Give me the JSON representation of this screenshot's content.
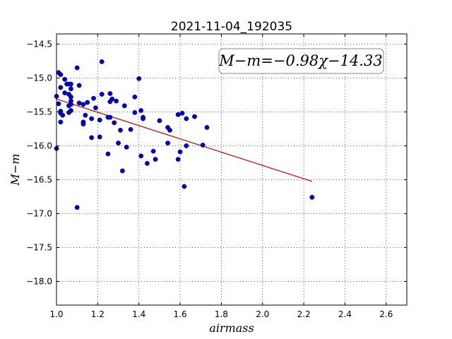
{
  "chart_data": {
    "type": "scatter",
    "title": "2021-11-04_192035",
    "xlabel": "airmass",
    "ylabel": "M−m",
    "xlim": [
      1.0,
      2.7
    ],
    "ylim": [
      -18.35,
      -14.35
    ],
    "y_inverted": true,
    "grid": true,
    "x_ticks": [
      1.0,
      1.2,
      1.4,
      1.6,
      1.8,
      2.0,
      2.2,
      2.4,
      2.6
    ],
    "x_tick_labels": [
      "1.0",
      "1.2",
      "1.4",
      "1.6",
      "1.8",
      "2.0",
      "2.2",
      "2.4",
      "2.6"
    ],
    "y_ticks": [
      -14.5,
      -15.0,
      -15.5,
      -16.0,
      -16.5,
      -17.0,
      -17.5,
      -18.0
    ],
    "y_tick_labels": [
      "−14.5",
      "−15.0",
      "−15.5",
      "−16.0",
      "−16.5",
      "−17.0",
      "−17.5",
      "−18.0"
    ],
    "annotation": "M−m=−0.98χ−14.33",
    "point_color": "#0000cc",
    "line_color": "#cc0000",
    "fit": {
      "slope": -0.98,
      "intercept": -14.33,
      "x_range": [
        1.0,
        2.24
      ]
    },
    "points": [
      {
        "x": 1.0,
        "y": -15.27
      },
      {
        "x": 1.0,
        "y": -16.04
      },
      {
        "x": 1.01,
        "y": -15.38
      },
      {
        "x": 1.01,
        "y": -14.92
      },
      {
        "x": 1.02,
        "y": -14.95
      },
      {
        "x": 1.02,
        "y": -15.14
      },
      {
        "x": 1.02,
        "y": -15.49
      },
      {
        "x": 1.02,
        "y": -15.52
      },
      {
        "x": 1.02,
        "y": -15.65
      },
      {
        "x": 1.03,
        "y": -15.55
      },
      {
        "x": 1.04,
        "y": -15.02
      },
      {
        "x": 1.04,
        "y": -15.22
      },
      {
        "x": 1.05,
        "y": -15.09
      },
      {
        "x": 1.06,
        "y": -15.09
      },
      {
        "x": 1.06,
        "y": -15.24
      },
      {
        "x": 1.06,
        "y": -15.41
      },
      {
        "x": 1.06,
        "y": -15.51
      },
      {
        "x": 1.07,
        "y": -15.09
      },
      {
        "x": 1.07,
        "y": -15.16
      },
      {
        "x": 1.07,
        "y": -15.28
      },
      {
        "x": 1.07,
        "y": -15.34
      },
      {
        "x": 1.07,
        "y": -15.39
      },
      {
        "x": 1.07,
        "y": -15.48
      },
      {
        "x": 1.1,
        "y": -14.85
      },
      {
        "x": 1.1,
        "y": -16.91
      },
      {
        "x": 1.11,
        "y": -15.11
      },
      {
        "x": 1.11,
        "y": -15.37
      },
      {
        "x": 1.13,
        "y": -15.39
      },
      {
        "x": 1.13,
        "y": -15.65
      },
      {
        "x": 1.13,
        "y": -15.68
      },
      {
        "x": 1.14,
        "y": -15.55
      },
      {
        "x": 1.15,
        "y": -15.36
      },
      {
        "x": 1.17,
        "y": -15.88
      },
      {
        "x": 1.17,
        "y": -15.6
      },
      {
        "x": 1.18,
        "y": -15.3
      },
      {
        "x": 1.19,
        "y": -15.44
      },
      {
        "x": 1.21,
        "y": -15.62
      },
      {
        "x": 1.21,
        "y": -15.87
      },
      {
        "x": 1.22,
        "y": -14.76
      },
      {
        "x": 1.22,
        "y": -15.24
      },
      {
        "x": 1.25,
        "y": -15.58
      },
      {
        "x": 1.25,
        "y": -16.12
      },
      {
        "x": 1.26,
        "y": -15.23
      },
      {
        "x": 1.26,
        "y": -15.35
      },
      {
        "x": 1.26,
        "y": -15.58
      },
      {
        "x": 1.27,
        "y": -15.31
      },
      {
        "x": 1.28,
        "y": -15.66
      },
      {
        "x": 1.29,
        "y": -15.34
      },
      {
        "x": 1.3,
        "y": -15.96
      },
      {
        "x": 1.31,
        "y": -15.77
      },
      {
        "x": 1.32,
        "y": -16.37
      },
      {
        "x": 1.33,
        "y": -15.41
      },
      {
        "x": 1.34,
        "y": -16.02
      },
      {
        "x": 1.36,
        "y": -15.76
      },
      {
        "x": 1.38,
        "y": -15.28
      },
      {
        "x": 1.38,
        "y": -15.51
      },
      {
        "x": 1.4,
        "y": -15.01
      },
      {
        "x": 1.41,
        "y": -15.48
      },
      {
        "x": 1.41,
        "y": -16.15
      },
      {
        "x": 1.42,
        "y": -15.58
      },
      {
        "x": 1.42,
        "y": -15.6
      },
      {
        "x": 1.44,
        "y": -16.26
      },
      {
        "x": 1.47,
        "y": -16.08
      },
      {
        "x": 1.48,
        "y": -16.2
      },
      {
        "x": 1.5,
        "y": -15.63
      },
      {
        "x": 1.54,
        "y": -15.96
      },
      {
        "x": 1.54,
        "y": -15.73
      },
      {
        "x": 1.55,
        "y": -15.77
      },
      {
        "x": 1.59,
        "y": -15.54
      },
      {
        "x": 1.59,
        "y": -16.2
      },
      {
        "x": 1.6,
        "y": -16.09
      },
      {
        "x": 1.61,
        "y": -15.52
      },
      {
        "x": 1.62,
        "y": -16.6
      },
      {
        "x": 1.63,
        "y": -15.6
      },
      {
        "x": 1.63,
        "y": -16.0
      },
      {
        "x": 1.67,
        "y": -15.57
      },
      {
        "x": 1.71,
        "y": -15.99
      },
      {
        "x": 1.73,
        "y": -15.73
      },
      {
        "x": 2.24,
        "y": -16.76
      }
    ]
  }
}
